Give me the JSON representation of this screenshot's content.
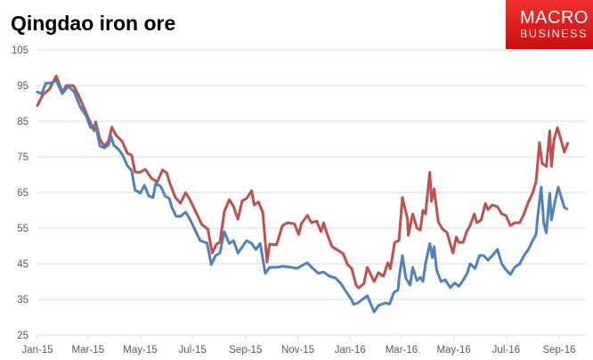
{
  "chart_data": {
    "type": "line",
    "title": "Qingdao iron ore",
    "xlabel": "",
    "ylabel": "",
    "ylim": [
      25,
      105
    ],
    "yticks": [
      "105",
      "95",
      "85",
      "75",
      "65",
      "55",
      "45",
      "35",
      "25"
    ],
    "xticks": [
      {
        "label": "Jan-15",
        "date": "2015-01-01"
      },
      {
        "label": "Mar-15",
        "date": "2015-03-01"
      },
      {
        "label": "May-15",
        "date": "2015-05-01"
      },
      {
        "label": "Jul-15",
        "date": "2015-07-01"
      },
      {
        "label": "Sep-15",
        "date": "2015-09-01"
      },
      {
        "label": "Nov-15",
        "date": "2015-11-01"
      },
      {
        "label": "Jan-16",
        "date": "2016-01-01"
      },
      {
        "label": "Mar-16",
        "date": "2016-03-01"
      },
      {
        "label": "May-16",
        "date": "2016-05-01"
      },
      {
        "label": "Jul-16",
        "date": "2016-07-01"
      },
      {
        "label": "Sep-16",
        "date": "2016-09-01"
      }
    ],
    "grid": true,
    "legend": "none",
    "series": [
      {
        "color": "#c0504d",
        "points": [
          [
            "2015-01-01",
            89.4
          ],
          [
            "2015-01-07",
            92.3
          ],
          [
            "2015-01-15",
            94
          ],
          [
            "2015-01-23",
            97.7
          ],
          [
            "2015-01-30",
            93.2
          ],
          [
            "2015-02-04",
            95
          ],
          [
            "2015-02-12",
            95
          ],
          [
            "2015-02-18",
            92.3
          ],
          [
            "2015-02-27",
            87.3
          ],
          [
            "2015-03-08",
            82.3
          ],
          [
            "2015-03-10",
            84.8
          ],
          [
            "2015-03-15",
            80
          ],
          [
            "2015-03-20",
            78
          ],
          [
            "2015-03-25",
            79.5
          ],
          [
            "2015-03-29",
            83.3
          ],
          [
            "2015-04-03",
            81
          ],
          [
            "2015-04-10",
            79.3
          ],
          [
            "2015-04-16",
            76
          ],
          [
            "2015-04-21",
            75.5
          ],
          [
            "2015-04-25",
            70.7
          ],
          [
            "2015-05-01",
            70.7
          ],
          [
            "2015-05-07",
            71.5
          ],
          [
            "2015-05-14",
            69
          ],
          [
            "2015-05-21",
            68
          ],
          [
            "2015-05-27",
            71.3
          ],
          [
            "2015-06-01",
            70.5
          ],
          [
            "2015-06-04",
            68
          ],
          [
            "2015-06-11",
            63.6
          ],
          [
            "2015-06-17",
            62
          ],
          [
            "2015-06-23",
            65
          ],
          [
            "2015-06-28",
            63
          ],
          [
            "2015-07-05",
            59.5
          ],
          [
            "2015-07-12",
            56
          ],
          [
            "2015-07-19",
            54.7
          ],
          [
            "2015-07-24",
            48
          ],
          [
            "2015-07-29",
            50.5
          ],
          [
            "2015-08-02",
            51
          ],
          [
            "2015-08-07",
            59.5
          ],
          [
            "2015-08-13",
            63
          ],
          [
            "2015-08-18",
            61
          ],
          [
            "2015-08-23",
            57.5
          ],
          [
            "2015-08-28",
            62.7
          ],
          [
            "2015-09-02",
            63.3
          ],
          [
            "2015-09-08",
            65.5
          ],
          [
            "2015-09-11",
            61.5
          ],
          [
            "2015-09-16",
            62.3
          ],
          [
            "2015-09-21",
            59.5
          ],
          [
            "2015-09-24",
            51
          ],
          [
            "2015-09-26",
            45.5
          ],
          [
            "2015-09-29",
            50.5
          ],
          [
            "2015-10-07",
            50.3
          ],
          [
            "2015-10-10",
            52.5
          ],
          [
            "2015-10-14",
            55.7
          ],
          [
            "2015-10-20",
            56.5
          ],
          [
            "2015-10-28",
            56.2
          ],
          [
            "2015-11-02",
            53.2
          ],
          [
            "2015-11-05",
            56.2
          ],
          [
            "2015-11-12",
            58.6
          ],
          [
            "2015-11-17",
            56.5
          ],
          [
            "2015-11-23",
            57
          ],
          [
            "2015-11-28",
            54
          ],
          [
            "2015-12-01",
            56.5
          ],
          [
            "2015-12-05",
            53.5
          ],
          [
            "2015-12-11",
            49.8
          ],
          [
            "2015-12-19",
            48.6
          ],
          [
            "2015-12-24",
            47.8
          ],
          [
            "2015-12-29",
            44.8
          ],
          [
            "2016-01-03",
            43.6
          ],
          [
            "2016-01-08",
            39
          ],
          [
            "2016-01-11",
            38.2
          ],
          [
            "2016-01-17",
            39.4
          ],
          [
            "2016-01-21",
            44
          ],
          [
            "2016-01-26",
            41.5
          ],
          [
            "2016-01-29",
            40
          ],
          [
            "2016-02-03",
            42.5
          ],
          [
            "2016-02-09",
            41.5
          ],
          [
            "2016-02-14",
            45.3
          ],
          [
            "2016-02-17",
            43.6
          ],
          [
            "2016-02-22",
            51
          ],
          [
            "2016-02-27",
            51.5
          ],
          [
            "2016-03-02",
            63.6
          ],
          [
            "2016-03-08",
            57.6
          ],
          [
            "2016-03-09",
            53
          ],
          [
            "2016-03-14",
            59
          ],
          [
            "2016-03-19",
            55
          ],
          [
            "2016-03-23",
            54.5
          ],
          [
            "2016-03-26",
            60
          ],
          [
            "2016-03-29",
            59
          ],
          [
            "2016-04-03",
            70.7
          ],
          [
            "2016-04-05",
            62.5
          ],
          [
            "2016-04-08",
            66
          ],
          [
            "2016-04-13",
            56.7
          ],
          [
            "2016-04-18",
            54.7
          ],
          [
            "2016-04-23",
            53.8
          ],
          [
            "2016-04-27",
            50.5
          ],
          [
            "2016-04-30",
            48
          ],
          [
            "2016-05-04",
            52.5
          ],
          [
            "2016-05-07",
            51
          ],
          [
            "2016-05-12",
            51
          ],
          [
            "2016-05-16",
            54
          ],
          [
            "2016-05-20",
            55.7
          ],
          [
            "2016-05-25",
            59
          ],
          [
            "2016-05-28",
            56.5
          ],
          [
            "2016-06-02",
            57.3
          ],
          [
            "2016-06-07",
            61.9
          ],
          [
            "2016-06-10",
            60.2
          ],
          [
            "2016-06-15",
            61.5
          ],
          [
            "2016-06-21",
            61
          ],
          [
            "2016-06-26",
            59
          ],
          [
            "2016-07-01",
            58.5
          ],
          [
            "2016-07-06",
            55.7
          ],
          [
            "2016-07-11",
            56.5
          ],
          [
            "2016-07-17",
            56.5
          ],
          [
            "2016-07-22",
            59
          ],
          [
            "2016-07-27",
            62.3
          ],
          [
            "2016-08-01",
            64.8
          ],
          [
            "2016-08-05",
            68
          ],
          [
            "2016-08-09",
            79
          ],
          [
            "2016-08-12",
            73.2
          ],
          [
            "2016-08-17",
            72.3
          ],
          [
            "2016-08-21",
            82.3
          ],
          [
            "2016-08-23",
            72.3
          ],
          [
            "2016-08-26",
            79.8
          ],
          [
            "2016-08-30",
            83.2
          ],
          [
            "2016-09-04",
            79
          ],
          [
            "2016-09-07",
            76.3
          ],
          [
            "2016-09-11",
            78.8
          ]
        ]
      },
      {
        "color": "#4f81bd",
        "points": [
          [
            "2015-01-01",
            93.2
          ],
          [
            "2015-01-06",
            92.7
          ],
          [
            "2015-01-11",
            95.7
          ],
          [
            "2015-01-17",
            95.7
          ],
          [
            "2015-01-23",
            96.5
          ],
          [
            "2015-01-30",
            92.7
          ],
          [
            "2015-02-06",
            94.8
          ],
          [
            "2015-02-13",
            93.2
          ],
          [
            "2015-02-20",
            89
          ],
          [
            "2015-02-27",
            86.5
          ],
          [
            "2015-03-04",
            83.2
          ],
          [
            "2015-03-10",
            84
          ],
          [
            "2015-03-15",
            78
          ],
          [
            "2015-03-20",
            77.5
          ],
          [
            "2015-03-25",
            78.3
          ],
          [
            "2015-03-28",
            80.8
          ],
          [
            "2015-03-31",
            78.3
          ],
          [
            "2015-04-06",
            77
          ],
          [
            "2015-04-11",
            75.3
          ],
          [
            "2015-04-16",
            72.5
          ],
          [
            "2015-04-21",
            71.2
          ],
          [
            "2015-04-25",
            65.7
          ],
          [
            "2015-05-01",
            64.8
          ],
          [
            "2015-05-06",
            67
          ],
          [
            "2015-05-11",
            64
          ],
          [
            "2015-05-16",
            63.6
          ],
          [
            "2015-05-19",
            67.5
          ],
          [
            "2015-05-25",
            66.7
          ],
          [
            "2015-05-30",
            64
          ],
          [
            "2015-06-04",
            63.3
          ],
          [
            "2015-06-07",
            60.8
          ],
          [
            "2015-06-12",
            58.3
          ],
          [
            "2015-06-17",
            58.3
          ],
          [
            "2015-06-23",
            59.5
          ],
          [
            "2015-06-28",
            57.5
          ],
          [
            "2015-07-05",
            54
          ],
          [
            "2015-07-10",
            51.5
          ],
          [
            "2015-07-18",
            50.8
          ],
          [
            "2015-07-23",
            44.8
          ],
          [
            "2015-07-28",
            47.3
          ],
          [
            "2015-08-02",
            48
          ],
          [
            "2015-08-07",
            54
          ],
          [
            "2015-08-13",
            50.7
          ],
          [
            "2015-08-18",
            51.5
          ],
          [
            "2015-08-23",
            48
          ],
          [
            "2015-08-28",
            49.7
          ],
          [
            "2015-09-02",
            51.5
          ],
          [
            "2015-09-08",
            50.7
          ],
          [
            "2015-09-13",
            49
          ],
          [
            "2015-09-18",
            50.7
          ],
          [
            "2015-09-21",
            46.5
          ],
          [
            "2015-09-24",
            42.3
          ],
          [
            "2015-09-29",
            44
          ],
          [
            "2015-10-07",
            44
          ],
          [
            "2015-10-14",
            44.3
          ],
          [
            "2015-10-24",
            44
          ],
          [
            "2015-10-31",
            43.7
          ],
          [
            "2015-11-12",
            45.3
          ],
          [
            "2015-11-17",
            44
          ],
          [
            "2015-11-25",
            42.3
          ],
          [
            "2015-12-01",
            42.7
          ],
          [
            "2015-12-08",
            41.5
          ],
          [
            "2015-12-15",
            41
          ],
          [
            "2015-12-21",
            39.5
          ],
          [
            "2015-12-27",
            37.3
          ],
          [
            "2016-01-03",
            34.8
          ],
          [
            "2016-01-05",
            33.6
          ],
          [
            "2016-01-10",
            34
          ],
          [
            "2016-01-17",
            35.3
          ],
          [
            "2016-01-21",
            36
          ],
          [
            "2016-01-26",
            33.2
          ],
          [
            "2016-01-29",
            31.5
          ],
          [
            "2016-02-03",
            33.3
          ],
          [
            "2016-02-11",
            34
          ],
          [
            "2016-02-16",
            33.7
          ],
          [
            "2016-02-21",
            36.9
          ],
          [
            "2016-02-26",
            37.7
          ],
          [
            "2016-02-27",
            40.7
          ],
          [
            "2016-03-02",
            47.3
          ],
          [
            "2016-03-06",
            41
          ],
          [
            "2016-03-11",
            39
          ],
          [
            "2016-03-14",
            44
          ],
          [
            "2016-03-19",
            40.3
          ],
          [
            "2016-03-23",
            41.2
          ],
          [
            "2016-03-26",
            40
          ],
          [
            "2016-03-29",
            45
          ],
          [
            "2016-04-03",
            50.7
          ],
          [
            "2016-04-06",
            46.7
          ],
          [
            "2016-04-08",
            49.8
          ],
          [
            "2016-04-11",
            43.3
          ],
          [
            "2016-04-16",
            40
          ],
          [
            "2016-04-21",
            40.5
          ],
          [
            "2016-04-27",
            38.3
          ],
          [
            "2016-05-02",
            39.6
          ],
          [
            "2016-05-07",
            38.7
          ],
          [
            "2016-05-12",
            40.4
          ],
          [
            "2016-05-17",
            42.5
          ],
          [
            "2016-05-20",
            45
          ],
          [
            "2016-05-26",
            43.7
          ],
          [
            "2016-05-31",
            47.3
          ],
          [
            "2016-06-05",
            47.3
          ],
          [
            "2016-06-10",
            46
          ],
          [
            "2016-06-15",
            47.3
          ],
          [
            "2016-06-21",
            49
          ],
          [
            "2016-06-26",
            45
          ],
          [
            "2016-07-01",
            43.3
          ],
          [
            "2016-07-06",
            42
          ],
          [
            "2016-07-11",
            44
          ],
          [
            "2016-07-17",
            45
          ],
          [
            "2016-07-22",
            47.3
          ],
          [
            "2016-07-27",
            49
          ],
          [
            "2016-08-01",
            51.5
          ],
          [
            "2016-08-05",
            53.2
          ],
          [
            "2016-08-07",
            58.2
          ],
          [
            "2016-08-11",
            66.5
          ],
          [
            "2016-08-14",
            56.5
          ],
          [
            "2016-08-17",
            53.7
          ],
          [
            "2016-08-21",
            64.8
          ],
          [
            "2016-08-23",
            57.3
          ],
          [
            "2016-08-27",
            62.3
          ],
          [
            "2016-08-31",
            66.5
          ],
          [
            "2016-09-04",
            63.2
          ],
          [
            "2016-09-07",
            60.8
          ],
          [
            "2016-09-10",
            60.4
          ]
        ]
      }
    ]
  },
  "logo": {
    "line1": "MACRO",
    "line2": "BUSINESS",
    "color": "#e01b1b"
  }
}
